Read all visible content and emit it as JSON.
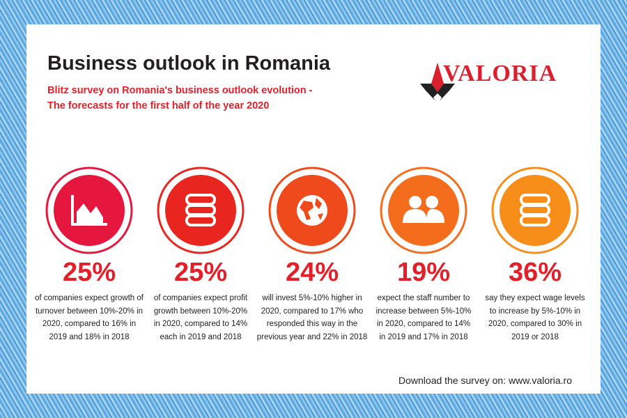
{
  "header": {
    "title": "Business outlook in Romania",
    "subtitle": [
      "Blitz survey on Romania's business outlook evolution -",
      "The forecasts for the first half of the year 2020"
    ]
  },
  "logo": {
    "text": "VALORIA"
  },
  "stats": [
    {
      "value": "25%",
      "description": [
        "of companies expect growth of",
        "turnover between 10%-20% in",
        "2020, compared to 16% in",
        "2019 and 18% in 2018"
      ]
    },
    {
      "value": "25%",
      "description": [
        "of companies expect profit",
        "growth between 10%-20%",
        "in 2020, compared to 14%",
        "each in 2019 and 2018"
      ]
    },
    {
      "value": "24%",
      "description": [
        "will invest 5%-10% higher in",
        "2020, compared to 17% who",
        "responded this way in the",
        "previous year and 22% in 2018"
      ]
    },
    {
      "value": "19%",
      "description": [
        "expect the staff number  to",
        "increase between 5%-10%",
        "in 2020, compared to 14%",
        "in 2019 and 17% in 2018"
      ]
    },
    {
      "value": "36%",
      "description": [
        "say they expect wage levels",
        "to increase by 5%-10% in",
        "2020, compared to 30% in",
        "2019 or 2018"
      ]
    }
  ],
  "footer": "Download the survey on: www.valoria.ro"
}
